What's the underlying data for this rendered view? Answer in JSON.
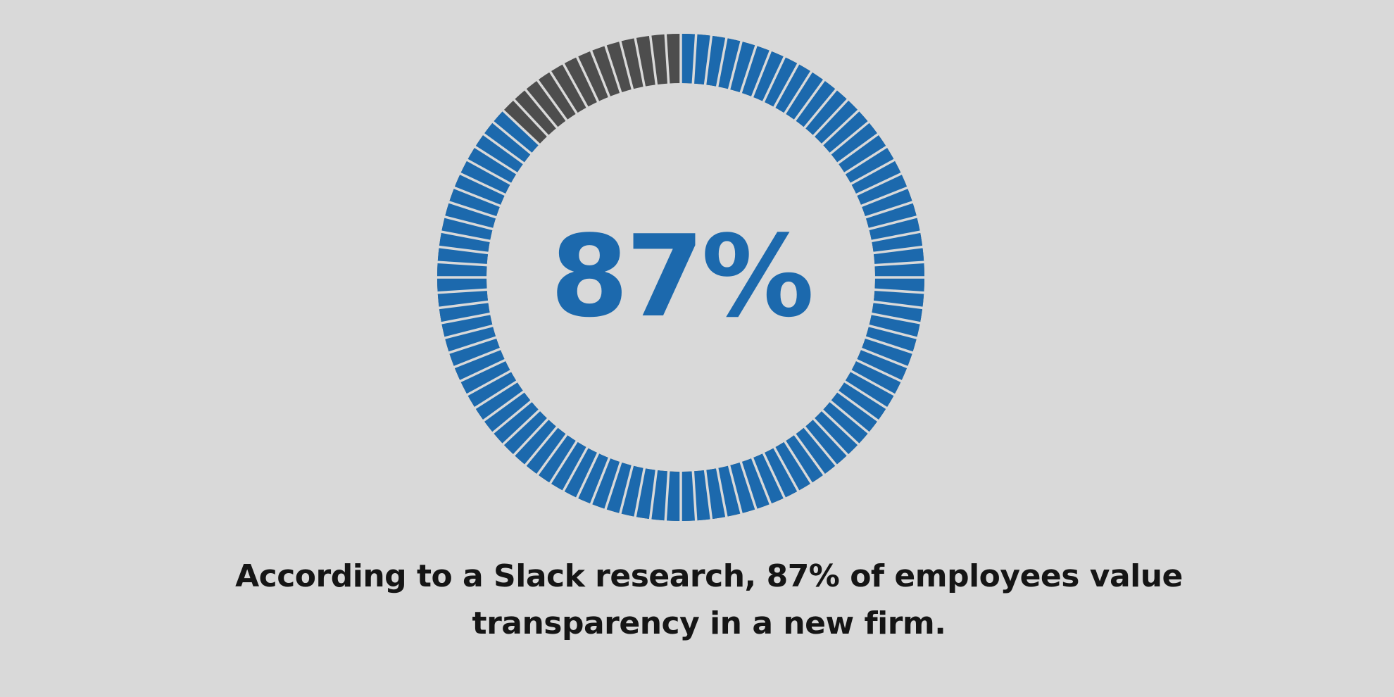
{
  "chart_data": {
    "type": "gauge",
    "values": [
      87
    ],
    "value_labels": [
      "87%"
    ],
    "ylim": [
      0,
      100
    ],
    "color": "#1c69ad",
    "track_color": "#4d4d4d",
    "caption": "According to a Slack research, 87% of employees value transparency in a new firm."
  }
}
